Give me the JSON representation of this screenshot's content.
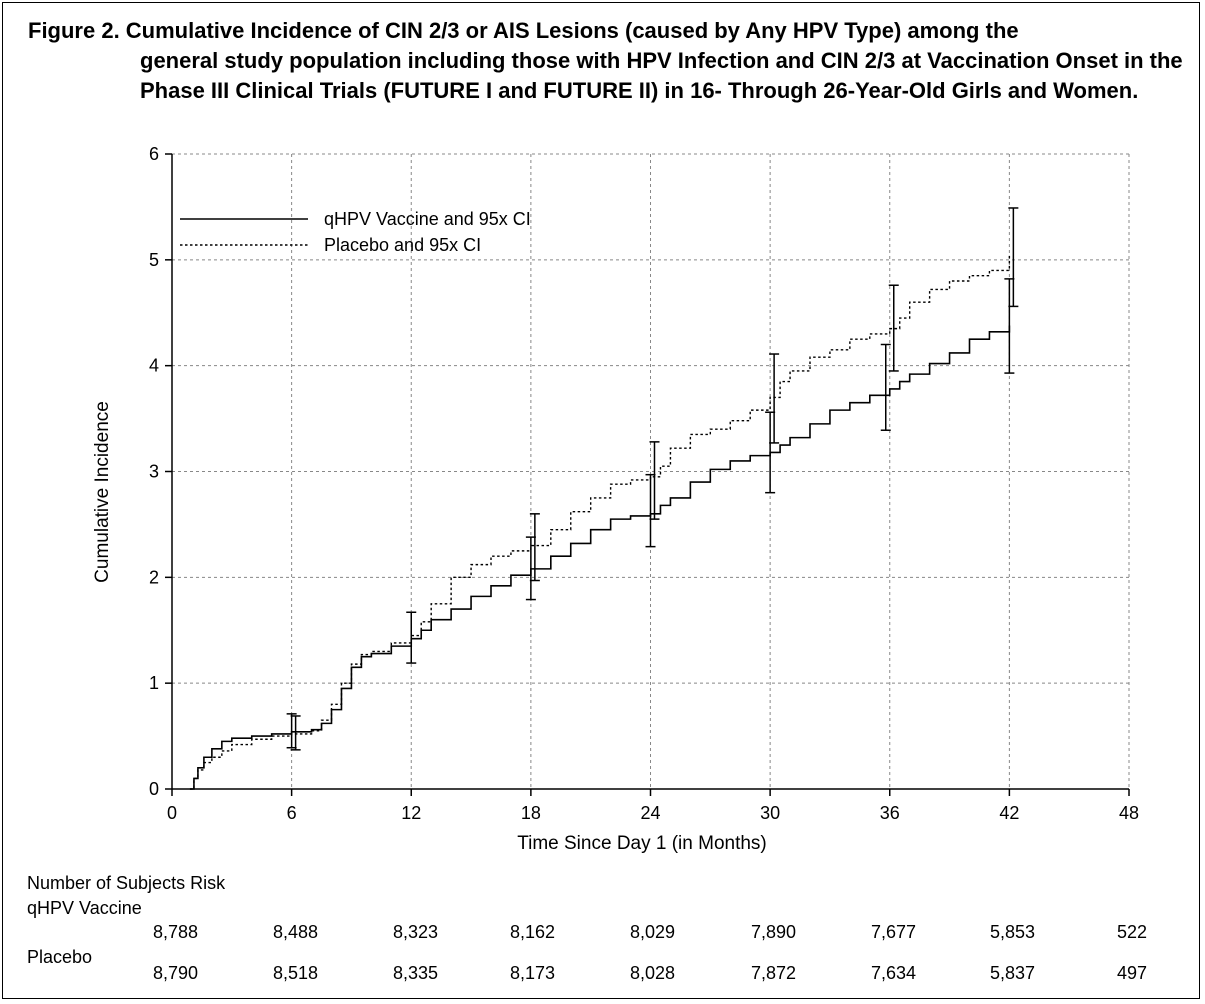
{
  "figure": {
    "title_line1": "Figure 2. Cumulative Incidence of CIN 2/3 or AIS Lesions (caused by Any HPV Type) among the",
    "title_rest": "general study population including those with HPV Infection and CIN 2/3 at Vaccination Onset in the Phase III Clinical Trials (FUTURE I and FUTURE II) in 16- Through 26-Year-Old Girls and Women."
  },
  "chart_data": {
    "type": "line",
    "title": "Figure 2. Cumulative Incidence of CIN 2/3 or AIS Lesions (caused by Any HPV Type) among the general study population including those with HPV Infection and CIN 2/3 at Vaccination Onset in the Phase III Clinical Trials (FUTURE I and FUTURE II) in 16- Through 26-Year-Old Girls and Women.",
    "xlabel": "Time Since Day 1 (in Months)",
    "ylabel": "Cumulative Incidence",
    "xlim": [
      0,
      48
    ],
    "ylim": [
      0,
      6
    ],
    "x_ticks": [
      0,
      6,
      12,
      18,
      24,
      30,
      36,
      42,
      48
    ],
    "y_ticks": [
      0,
      1,
      2,
      3,
      4,
      5,
      6
    ],
    "grid": true,
    "legend_position": "top-left",
    "series": [
      {
        "name": "qHPV Vaccine and 95x CI",
        "style": "solid",
        "x": [
          0.9,
          1.1,
          1.3,
          1.6,
          2.0,
          2.5,
          3.0,
          4.0,
          5.0,
          6.0,
          6.5,
          7.0,
          7.5,
          8.0,
          8.5,
          9.0,
          9.5,
          10.0,
          11.0,
          12.0,
          12.5,
          13.0,
          14.0,
          15.0,
          16.0,
          17.0,
          18.0,
          19.0,
          20.0,
          21.0,
          22.0,
          23.0,
          24.0,
          24.5,
          25.0,
          26.0,
          27.0,
          28.0,
          29.0,
          30.0,
          30.5,
          31.0,
          32.0,
          33.0,
          34.0,
          35.0,
          36.0,
          36.5,
          37.0,
          38.0,
          39.0,
          40.0,
          41.0,
          42.0
        ],
        "y": [
          0.0,
          0.1,
          0.2,
          0.3,
          0.38,
          0.45,
          0.48,
          0.5,
          0.52,
          0.54,
          0.54,
          0.56,
          0.62,
          0.75,
          0.95,
          1.15,
          1.25,
          1.28,
          1.35,
          1.42,
          1.5,
          1.6,
          1.7,
          1.82,
          1.92,
          2.02,
          2.08,
          2.2,
          2.32,
          2.45,
          2.55,
          2.58,
          2.6,
          2.68,
          2.75,
          2.9,
          3.02,
          3.1,
          3.15,
          3.18,
          3.25,
          3.32,
          3.45,
          3.58,
          3.65,
          3.72,
          3.78,
          3.85,
          3.92,
          4.02,
          4.12,
          4.25,
          4.32,
          4.38
        ]
      },
      {
        "name": "Placebo and 95x CI",
        "style": "dotted",
        "x": [
          0.9,
          1.1,
          1.3,
          1.6,
          2.0,
          2.5,
          3.0,
          4.0,
          5.0,
          6.0,
          6.5,
          7.0,
          7.5,
          8.0,
          8.5,
          9.0,
          9.5,
          10.0,
          11.0,
          12.0,
          12.5,
          13.0,
          14.0,
          15.0,
          16.0,
          17.0,
          18.0,
          19.0,
          20.0,
          21.0,
          22.0,
          23.0,
          24.0,
          24.5,
          25.0,
          26.0,
          27.0,
          28.0,
          29.0,
          30.0,
          30.5,
          31.0,
          32.0,
          33.0,
          34.0,
          35.0,
          36.0,
          36.5,
          37.0,
          38.0,
          39.0,
          40.0,
          41.0,
          42.0
        ],
        "y": [
          0.0,
          0.1,
          0.18,
          0.25,
          0.3,
          0.36,
          0.42,
          0.47,
          0.5,
          0.52,
          0.52,
          0.55,
          0.65,
          0.8,
          1.0,
          1.18,
          1.27,
          1.3,
          1.38,
          1.45,
          1.58,
          1.75,
          2.0,
          2.12,
          2.2,
          2.25,
          2.3,
          2.45,
          2.62,
          2.75,
          2.88,
          2.92,
          2.95,
          3.05,
          3.22,
          3.35,
          3.4,
          3.48,
          3.58,
          3.7,
          3.85,
          3.95,
          4.08,
          4.15,
          4.25,
          4.3,
          4.35,
          4.45,
          4.6,
          4.72,
          4.8,
          4.85,
          4.9,
          5.05
        ]
      }
    ],
    "error_bars": [
      {
        "series": "qHPV Vaccine and 95x CI",
        "x": 6,
        "low": 0.39,
        "high": 0.71
      },
      {
        "series": "Placebo and 95x CI",
        "x": 6.2,
        "low": 0.37,
        "high": 0.69
      },
      {
        "series": "qHPV Vaccine and 95x CI",
        "x": 12,
        "low": 1.19,
        "high": 1.67
      },
      {
        "series": "qHPV Vaccine and 95x CI",
        "x": 18,
        "low": 1.79,
        "high": 2.38
      },
      {
        "series": "Placebo and 95x CI",
        "x": 18.2,
        "low": 1.97,
        "high": 2.6
      },
      {
        "series": "qHPV Vaccine and 95x CI",
        "x": 24,
        "low": 2.29,
        "high": 2.97
      },
      {
        "series": "Placebo and 95x CI",
        "x": 24.2,
        "low": 2.55,
        "high": 3.28
      },
      {
        "series": "qHPV Vaccine and 95x CI",
        "x": 30,
        "low": 2.8,
        "high": 3.56
      },
      {
        "series": "Placebo and 95x CI",
        "x": 30.2,
        "low": 3.27,
        "high": 4.11
      },
      {
        "series": "qHPV Vaccine and 95x CI",
        "x": 35.8,
        "low": 3.39,
        "high": 4.2
      },
      {
        "series": "Placebo and 95x CI",
        "x": 36.2,
        "low": 3.95,
        "high": 4.76
      },
      {
        "series": "qHPV Vaccine and 95x CI",
        "x": 42,
        "low": 3.93,
        "high": 4.82
      },
      {
        "series": "Placebo and 95x CI",
        "x": 42.2,
        "low": 4.56,
        "high": 5.49
      }
    ]
  },
  "risk_table": {
    "heading": "Number of Subjects Risk",
    "rows": [
      {
        "label": "qHPV Vaccine",
        "values": [
          "8,788",
          "8,488",
          "8,323",
          "8,162",
          "8,029",
          "7,890",
          "7,677",
          "5,853",
          "522"
        ]
      },
      {
        "label": "Placebo",
        "values": [
          "8,790",
          "8,518",
          "8,335",
          "8,173",
          "8,028",
          "7,872",
          "7,634",
          "5,837",
          "497"
        ]
      }
    ]
  }
}
